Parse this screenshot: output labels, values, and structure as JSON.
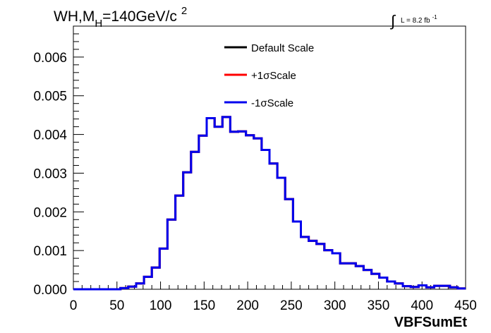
{
  "chart_data": {
    "type": "line",
    "title_main": "WH,M",
    "title_sub": "H",
    "title_rest": "=140GeV/c",
    "title_sup": "2",
    "lumi_label": "L = 8.2 fb",
    "lumi_sup": "-1",
    "xlabel": "VBFSumEt",
    "ylabel": "",
    "xlim": [
      0,
      450
    ],
    "ylim": [
      0,
      0.0068
    ],
    "grid": false,
    "legend_position": "top-center",
    "x_ticks": [
      0,
      50,
      100,
      150,
      200,
      250,
      300,
      350,
      400,
      450
    ],
    "x_tick_labels": [
      "0",
      "50",
      "100",
      "150",
      "200",
      "250",
      "300",
      "350",
      "400",
      "450"
    ],
    "y_ticks": [
      0,
      0.001,
      0.002,
      0.003,
      0.004,
      0.005,
      0.006
    ],
    "y_tick_labels": [
      "0.000",
      "0.001",
      "0.002",
      "0.003",
      "0.004",
      "0.005",
      "0.006"
    ],
    "bin_edges": [
      0,
      9,
      18,
      27,
      36,
      45,
      54,
      63,
      72,
      81,
      90,
      99,
      108,
      117,
      126,
      135,
      144,
      153,
      162,
      171,
      180,
      189,
      198,
      207,
      216,
      225,
      234,
      243,
      252,
      261,
      270,
      279,
      288,
      297,
      306,
      315,
      324,
      333,
      342,
      351,
      360,
      369,
      378,
      387,
      396,
      405,
      414,
      423,
      432,
      441,
      450
    ],
    "series": [
      {
        "name": "Default Scale",
        "color": "#000000",
        "values": [
          0.0,
          0.0,
          0.0,
          0.0,
          0.0,
          0.0,
          3e-05,
          7e-05,
          0.00015,
          0.00032,
          0.00056,
          0.00105,
          0.0018,
          0.00242,
          0.00302,
          0.00355,
          0.00397,
          0.00442,
          0.0042,
          0.00445,
          0.00407,
          0.00408,
          0.00398,
          0.0039,
          0.0036,
          0.00325,
          0.00288,
          0.00233,
          0.00175,
          0.00135,
          0.00125,
          0.00117,
          0.00101,
          0.00093,
          0.00067,
          0.00067,
          0.0006,
          0.0005,
          0.0004,
          0.0003,
          0.0002,
          0.00015,
          8e-05,
          6e-05,
          0.0001,
          5e-05,
          9e-05,
          9e-05,
          5e-05,
          2e-05
        ]
      },
      {
        "name": "+1σScale",
        "color": "#ff0000",
        "values": [
          0.0,
          0.0,
          0.0,
          0.0,
          0.0,
          0.0,
          3e-05,
          7e-05,
          0.00015,
          0.00032,
          0.00056,
          0.00105,
          0.0018,
          0.00242,
          0.00302,
          0.00355,
          0.00397,
          0.00442,
          0.0042,
          0.00445,
          0.00407,
          0.00408,
          0.00398,
          0.0039,
          0.0036,
          0.00325,
          0.00288,
          0.00233,
          0.00175,
          0.00135,
          0.00125,
          0.00117,
          0.00101,
          0.00093,
          0.00067,
          0.00067,
          0.0006,
          0.0005,
          0.0004,
          0.0003,
          0.0002,
          0.00015,
          8e-05,
          6e-05,
          0.0001,
          5e-05,
          9e-05,
          9e-05,
          5e-05,
          2e-05
        ]
      },
      {
        "name": "-1σScale",
        "color": "#0000ee",
        "values": [
          0.0,
          0.0,
          0.0,
          0.0,
          0.0,
          0.0,
          3e-05,
          7e-05,
          0.00015,
          0.00032,
          0.00056,
          0.00105,
          0.0018,
          0.00242,
          0.00302,
          0.00355,
          0.00397,
          0.00442,
          0.0042,
          0.00445,
          0.00407,
          0.00408,
          0.00398,
          0.0039,
          0.0036,
          0.00325,
          0.00288,
          0.00233,
          0.00175,
          0.00135,
          0.00125,
          0.00117,
          0.00101,
          0.00093,
          0.00067,
          0.00067,
          0.0006,
          0.0005,
          0.0004,
          0.0003,
          0.0002,
          0.00015,
          8e-05,
          6e-05,
          0.0001,
          5e-05,
          9e-05,
          9e-05,
          5e-05,
          2e-05
        ]
      }
    ]
  }
}
